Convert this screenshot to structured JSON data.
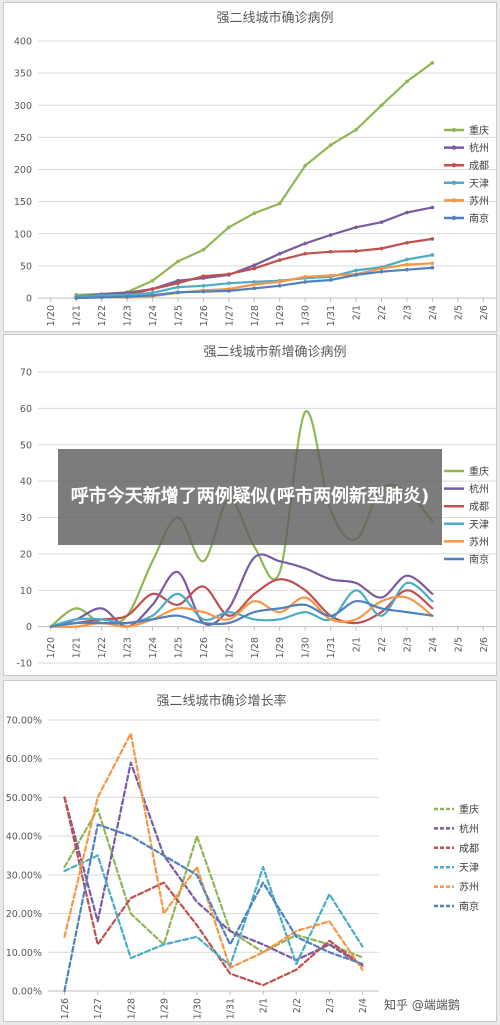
{
  "overlay": {
    "headline": "呼市今天新增了两例疑似(呼市两例新型肺炎)",
    "watermark": "知乎 @端端鹅"
  },
  "chart_data": [
    {
      "type": "line",
      "title": "强二线城市确诊病例",
      "x": [
        "1/20",
        "1/21",
        "1/22",
        "1/23",
        "1/24",
        "1/25",
        "1/26",
        "1/27",
        "1/28",
        "1/29",
        "1/30",
        "1/31",
        "2/1",
        "2/2",
        "2/3",
        "2/4",
        "2/5",
        "2/6"
      ],
      "ylim": [
        0,
        400
      ],
      "yticks": [
        0,
        50,
        100,
        150,
        200,
        250,
        300,
        350,
        400
      ],
      "ytick_format": "int",
      "grid": true,
      "legend_position": "right",
      "line_style": "solid",
      "series": [
        {
          "name": "重庆",
          "color": "#92b656",
          "values": [
            null,
            5,
            6,
            9,
            27,
            57,
            75,
            110,
            132,
            147,
            206,
            238,
            262,
            300,
            337,
            366,
            null,
            null
          ]
        },
        {
          "name": "杭州",
          "color": "#7a5ba1",
          "values": [
            null,
            2,
            6,
            8,
            14,
            27,
            31,
            36,
            51,
            69,
            85,
            98,
            110,
            118,
            133,
            141,
            null,
            null
          ]
        },
        {
          "name": "成都",
          "color": "#c0504d",
          "values": [
            null,
            0,
            2,
            5,
            14,
            23,
            34,
            37,
            46,
            59,
            69,
            72,
            73,
            77,
            86,
            92,
            null,
            null
          ]
        },
        {
          "name": "天津",
          "color": "#4bacc6",
          "values": [
            null,
            2,
            4,
            5,
            8,
            17,
            19,
            23,
            25,
            27,
            31,
            33,
            43,
            48,
            60,
            67,
            null,
            null
          ]
        },
        {
          "name": "苏州",
          "color": "#f79646",
          "values": [
            null,
            0,
            1,
            1,
            3,
            8,
            12,
            14,
            21,
            25,
            33,
            35,
            37,
            46,
            52,
            54,
            null,
            null
          ]
        },
        {
          "name": "南京",
          "color": "#4f81bd",
          "values": [
            null,
            0,
            1,
            2,
            4,
            9,
            10,
            11,
            15,
            19,
            25,
            28,
            36,
            41,
            44,
            47,
            null,
            null
          ]
        }
      ]
    },
    {
      "type": "line",
      "title": "强二线城市新增确诊病例",
      "x": [
        "1/20",
        "1/21",
        "1/22",
        "1/23",
        "1/24",
        "1/25",
        "1/26",
        "1/27",
        "1/28",
        "1/29",
        "1/30",
        "1/31",
        "2/1",
        "2/2",
        "2/3",
        "2/4",
        "2/5",
        "2/6"
      ],
      "ylim": [
        -10,
        70
      ],
      "yticks": [
        -10,
        0,
        10,
        20,
        30,
        40,
        50,
        60,
        70
      ],
      "ytick_format": "int",
      "grid": true,
      "legend_position": "right",
      "line_style": "smooth",
      "series": [
        {
          "name": "重庆",
          "color": "#92b656",
          "values": [
            0,
            5,
            1,
            3,
            18,
            30,
            18,
            35,
            22,
            15,
            59,
            32,
            24,
            38,
            37,
            29,
            null,
            null
          ]
        },
        {
          "name": "杭州",
          "color": "#7a5ba1",
          "values": [
            0,
            2,
            5,
            0,
            6,
            15,
            1,
            5,
            19,
            18,
            16,
            13,
            12,
            8,
            14,
            9,
            null,
            null
          ]
        },
        {
          "name": "成都",
          "color": "#c0504d",
          "values": [
            0,
            1,
            2,
            3,
            9,
            6,
            11,
            3,
            9,
            13,
            10,
            3,
            1,
            4,
            10,
            5,
            null,
            null
          ]
        },
        {
          "name": "天津",
          "color": "#4bacc6",
          "values": [
            0,
            2,
            2,
            1,
            3,
            9,
            2,
            4,
            2,
            2,
            4,
            2,
            10,
            3,
            12,
            7,
            null,
            null
          ]
        },
        {
          "name": "苏州",
          "color": "#f79646",
          "values": [
            0,
            0,
            1,
            0,
            2,
            5,
            4,
            2,
            7,
            4,
            8,
            2,
            2,
            7,
            8,
            3,
            null,
            null
          ]
        },
        {
          "name": "南京",
          "color": "#4f81bd",
          "values": [
            0,
            1,
            1,
            1,
            2,
            3,
            1,
            1,
            4,
            5,
            6,
            3,
            7,
            5,
            4,
            3,
            null,
            null
          ]
        }
      ]
    },
    {
      "type": "line",
      "title": "强二线城市确诊增长率",
      "x": [
        "1/26",
        "1/27",
        "1/28",
        "1/29",
        "1/30",
        "1/31",
        "2/1",
        "2/2",
        "2/3",
        "2/4"
      ],
      "ylim": [
        0,
        0.7
      ],
      "yticks": [
        0,
        0.1,
        0.2,
        0.3,
        0.4,
        0.5,
        0.6,
        0.7
      ],
      "ytick_format": "percent2",
      "grid": true,
      "legend_position": "right",
      "line_style": "dashed",
      "series": [
        {
          "name": "重庆",
          "color": "#92b656",
          "values": [
            0.32,
            0.47,
            0.2,
            0.12,
            0.4,
            0.155,
            0.1,
            0.145,
            0.12,
            0.087
          ]
        },
        {
          "name": "杭州",
          "color": "#7a5ba1",
          "values": [
            0.5,
            0.18,
            0.59,
            0.35,
            0.23,
            0.155,
            0.12,
            0.08,
            0.12,
            0.065
          ]
        },
        {
          "name": "成都",
          "color": "#c0504d",
          "values": [
            0.5,
            0.12,
            0.24,
            0.28,
            0.17,
            0.045,
            0.015,
            0.055,
            0.13,
            0.065
          ]
        },
        {
          "name": "天津",
          "color": "#4bacc6",
          "values": [
            0.31,
            0.35,
            0.085,
            0.12,
            0.14,
            0.065,
            0.32,
            0.07,
            0.25,
            0.115
          ]
        },
        {
          "name": "苏州",
          "color": "#f79646",
          "values": [
            0.14,
            0.5,
            0.665,
            0.2,
            0.32,
            0.06,
            0.1,
            0.155,
            0.18,
            0.055
          ]
        },
        {
          "name": "南京",
          "color": "#4f81bd",
          "values": [
            0.0,
            0.43,
            0.4,
            0.35,
            0.3,
            0.12,
            0.28,
            0.14,
            0.1,
            0.07
          ]
        }
      ]
    }
  ]
}
